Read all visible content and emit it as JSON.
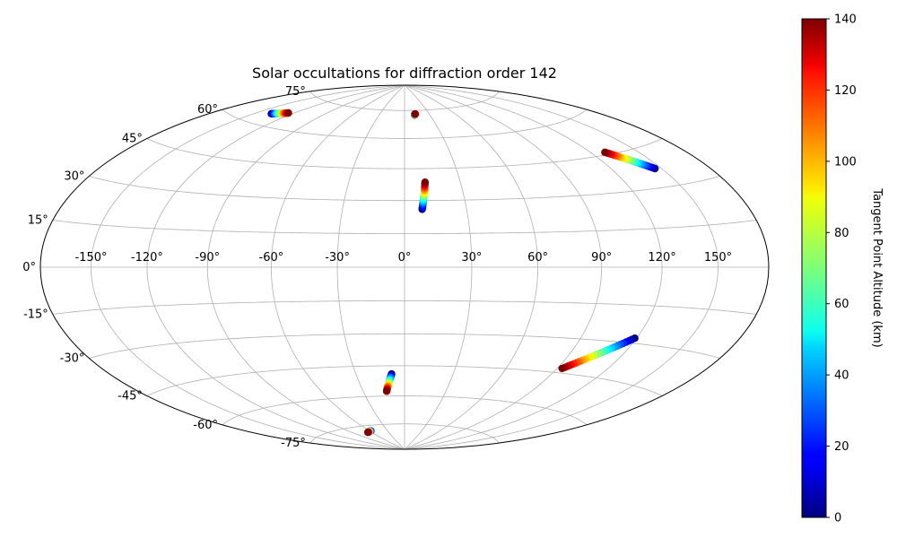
{
  "chart_data": {
    "type": "scatter",
    "projection": "hammer",
    "title": "Solar occultations for diffraction order 142",
    "xlabel": "",
    "ylabel": "",
    "lon_ticks": [
      -150,
      -120,
      -90,
      -60,
      -30,
      0,
      30,
      60,
      90,
      120,
      150
    ],
    "lat_ticks": [
      -75,
      -60,
      -45,
      -30,
      -15,
      0,
      15,
      30,
      45,
      60,
      75
    ],
    "lon_tick_labels": [
      "-150°",
      "-120°",
      "-90°",
      "-60°",
      "-30°",
      "0°",
      "30°",
      "60°",
      "90°",
      "120°",
      "150°"
    ],
    "lat_tick_labels": [
      "-75°",
      "-60°",
      "-45°",
      "-30°",
      "-15°",
      "0°",
      "15°",
      "30°",
      "45°",
      "60°",
      "75°"
    ],
    "xlim": [
      -180,
      180
    ],
    "ylim": [
      -90,
      90
    ],
    "grid": true,
    "colorbar": {
      "label": "Tangent Point Altitude (km)",
      "min": 0,
      "max": 140,
      "ticks": [
        0,
        20,
        40,
        60,
        80,
        100,
        120,
        140
      ],
      "tick_labels": [
        "0",
        "20",
        "40",
        "60",
        "80",
        "100",
        "120",
        "140"
      ],
      "colormap": "jet",
      "placement": "right"
    },
    "tracks": [
      {
        "lon_start": -137,
        "lat_start": 65,
        "alt_start": 0,
        "lon_end": -125,
        "lat_end": 67,
        "alt_end": 140
      },
      {
        "lon_start": 12,
        "lat_start": 72.5,
        "alt_start": 0,
        "lon_end": 13,
        "lat_end": 73,
        "alt_end": 140
      },
      {
        "lon_start": 8.5,
        "lat_start": 26,
        "alt_start": 0,
        "lon_end": 11,
        "lat_end": 38.5,
        "alt_end": 140
      },
      {
        "lon_start": 146,
        "lat_start": 37,
        "alt_start": 0,
        "lon_end": 129,
        "lat_end": 46,
        "alt_end": 140
      },
      {
        "lon_start": 119,
        "lat_start": -28,
        "alt_start": 0,
        "lon_end": 93,
        "lat_end": -43,
        "alt_end": 140
      },
      {
        "lon_start": -8,
        "lat_start": -49,
        "alt_start": 0,
        "lon_end": -13,
        "lat_end": -57.5,
        "alt_end": 140
      },
      {
        "lon_start": -58,
        "lat_start": -78,
        "alt_start": 0,
        "lon_end": -66,
        "lat_end": -78.5,
        "alt_end": 140
      }
    ],
    "points_per_track": 26
  }
}
